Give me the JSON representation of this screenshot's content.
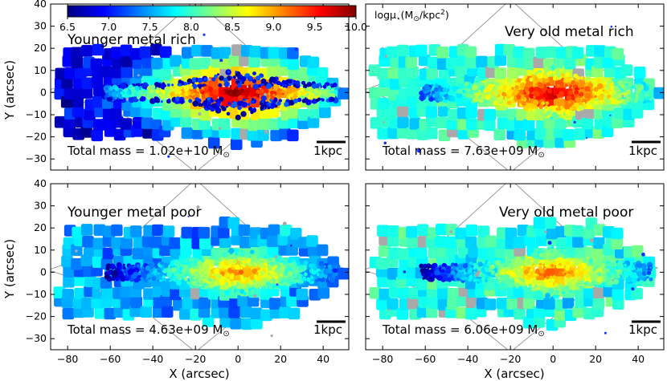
{
  "chart_data": {
    "type": "heatmap",
    "colorbar": {
      "label": "logμ⋆(M⊙/kpc²)",
      "label_base": "logμ",
      "label_sub": "⋆",
      "label_units_open": "(M",
      "label_units_sun": "⊙",
      "label_units_mid": "/kpc",
      "label_units_exp": "2",
      "label_units_close": ")",
      "min": 6.5,
      "max": 10.0,
      "ticks": [
        "6.5",
        "7.0",
        "7.5",
        "8.0",
        "8.5",
        "9.0",
        "9.5",
        "10.0"
      ],
      "colormap": "jet"
    },
    "xlabel": "X (arcsec)",
    "ylabel": "Y (arcsec)",
    "xlim": [
      -88,
      52
    ],
    "ylim": [
      -35,
      40
    ],
    "xticks": [
      "−80",
      "−60",
      "−40",
      "−20",
      "0",
      "20",
      "40"
    ],
    "yticks": [
      "40",
      "30",
      "20",
      "10",
      "0",
      "−10",
      "−20",
      "−30"
    ],
    "scalebar_label": "1kpc",
    "missing_bin_color": "#a9a9a9",
    "panels": [
      {
        "title": "Younger metal rich",
        "mass_prefix": "Total mass = ",
        "mass_value": "1.02e+10",
        "mass_unit": "M",
        "mass_sun": "⊙",
        "peak_log_density": 10.0,
        "disk_log_density": 6.9,
        "thin_layer": true
      },
      {
        "title": "Very old metal rich",
        "mass_prefix": "Total mass = ",
        "mass_value": "7.63e+09",
        "mass_unit": "M",
        "mass_sun": "⊙",
        "peak_log_density": 9.8,
        "disk_log_density": 7.9,
        "thin_layer": false
      },
      {
        "title": "Younger metal poor",
        "mass_prefix": "Total mass = ",
        "mass_value": "4.63e+09",
        "mass_unit": "M",
        "mass_sun": "⊙",
        "peak_log_density": 9.2,
        "disk_log_density": 7.5,
        "thin_layer": false
      },
      {
        "title": "Very old metal poor",
        "mass_prefix": "Total mass = ",
        "mass_value": "6.06e+09",
        "mass_unit": "M",
        "mass_sun": "⊙",
        "peak_log_density": 9.3,
        "disk_log_density": 7.9,
        "thin_layer": false
      }
    ]
  }
}
